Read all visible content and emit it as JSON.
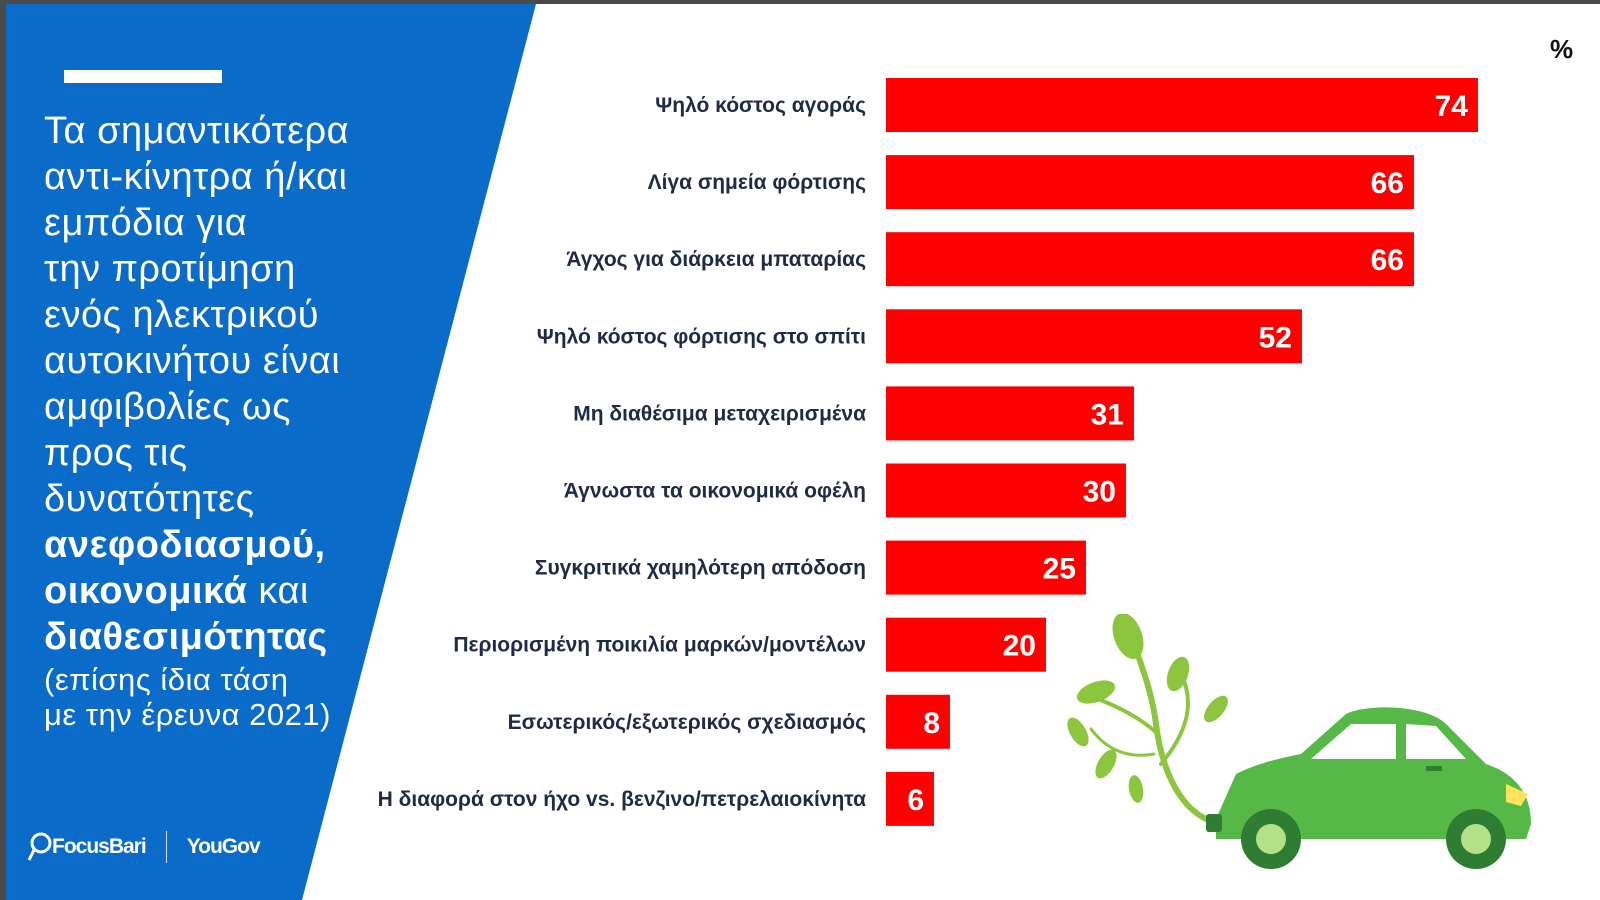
{
  "headline": {
    "line1": "Τα σημαντικότερα",
    "line2": "αντι-κίνητρα ή/και",
    "line3": "εμπόδια για",
    "line4": "την προτίμηση",
    "line5": "ενός ηλεκτρικού",
    "line6": "αυτοκινήτου είναι",
    "line7": "αμφιβολίες ως",
    "line8": "προς τις",
    "line9": "δυνατότητες",
    "bold1": "ανεφοδιασμού,",
    "bold2": "οικονομικά",
    "conj": " και",
    "bold3": "διαθεσιμότητας",
    "sub1": "(επίσης ίδια τάση",
    "sub2": "με την έρευνα 2021)"
  },
  "logos": {
    "left": "FocusBari",
    "right": "YouGov"
  },
  "unit_label": "%",
  "colors": {
    "panel": "#0a6cc8",
    "bar": "#ff0000",
    "leaf": "#8cc63f",
    "car": "#56b947"
  },
  "chart_data": {
    "type": "bar",
    "orientation": "horizontal",
    "title": "",
    "xlabel": "",
    "ylabel": "%",
    "xlim": [
      0,
      74
    ],
    "categories": [
      "Ψηλό κόστος αγοράς",
      "Λίγα σημεία φόρτισης",
      "Άγχος για διάρκεια μπαταρίας",
      "Ψηλό κόστος φόρτισης στο σπίτι",
      "Μη διαθέσιμα μεταχειρισμένα",
      "Άγνωστα τα οικονομικά οφέλη",
      "Συγκριτικά χαμηλότερη απόδοση",
      "Περιορισμένη ποικιλία μαρκών/μοντέλων",
      "Εσωτερικός/εξωτερικός σχεδιασμός",
      "Η διαφορά στον ήχο vs. βενζινο/πετρελαιοκίνητα"
    ],
    "values": [
      74,
      66,
      66,
      52,
      31,
      30,
      25,
      20,
      8,
      6
    ]
  }
}
